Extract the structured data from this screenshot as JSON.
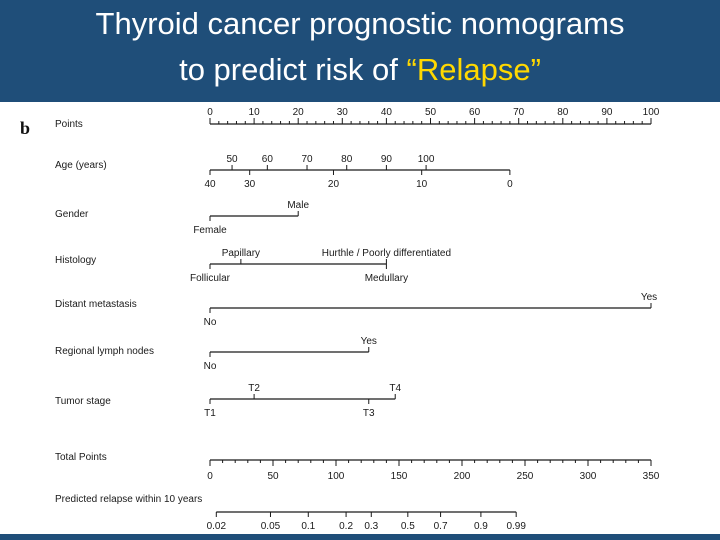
{
  "header": {
    "title_line1": "Thyroid cancer prognostic nomograms",
    "title_line2_prefix": "to predict risk of ",
    "title_line2_highlight": "“Relapse”"
  },
  "colors": {
    "header_bg": "#1f4e79",
    "title_text": "#ffffff",
    "highlight": "#ffd800",
    "ink": "#1a1a1a"
  },
  "chart_data": {
    "type": "nomogram",
    "panel_label": "b",
    "scales": [
      {
        "name": "Points",
        "ticks_above": [
          "0",
          "10",
          "20",
          "30",
          "40",
          "50",
          "60",
          "70",
          "80",
          "90",
          "100"
        ],
        "ticks_below": []
      },
      {
        "name": "Age (years)",
        "ticks_above": [
          "50",
          "60",
          "70",
          "80",
          "90",
          "100"
        ],
        "ticks_below": [
          "40",
          "30",
          "20",
          "10",
          "0"
        ]
      },
      {
        "name": "Gender",
        "ticks_above": [
          "Male"
        ],
        "ticks_below": [
          "Female"
        ]
      },
      {
        "name": "Histology",
        "ticks_above": [
          "Papillary",
          "Hurthle / Poorly differentiated"
        ],
        "ticks_below": [
          "Follicular",
          "Medullary"
        ]
      },
      {
        "name": "Distant metastasis",
        "ticks_above": [
          "Yes"
        ],
        "ticks_below": [
          "No"
        ]
      },
      {
        "name": "Regional lymph nodes",
        "ticks_above": [
          "Yes"
        ],
        "ticks_below": [
          "No"
        ]
      },
      {
        "name": "Tumor stage",
        "ticks_above": [
          "T2",
          "T4"
        ],
        "ticks_below": [
          "T1",
          "T3"
        ]
      },
      {
        "name": "Total Points",
        "ticks_above": [],
        "ticks_below": [
          "0",
          "50",
          "100",
          "150",
          "200",
          "250",
          "300",
          "350"
        ]
      },
      {
        "name": "Predicted relapse within 10 years",
        "ticks_above": [],
        "ticks_below": [
          "0.02",
          "0.05",
          "0.1",
          "0.2",
          "0.3",
          "0.5",
          "0.7",
          "0.9",
          "0.99"
        ]
      }
    ],
    "points_range": [
      0,
      100
    ],
    "total_points_range": [
      0,
      350
    ],
    "scale_points": {
      "Age (years)": {
        "50": 5,
        "60": 13,
        "70": 22,
        "80": 31,
        "90": 40,
        "100": 49,
        "40": 0,
        "30": 9,
        "20": 28,
        "10": 48,
        "0": 68
      },
      "Gender": {
        "Female": 0,
        "Male": 20
      },
      "Histology": {
        "Follicular": 0,
        "Papillary": 7,
        "Hurthle / Poorly differentiated": 40,
        "Medullary": 40
      },
      "Distant metastasis": {
        "No": 0,
        "Yes": 100
      },
      "Regional lymph nodes": {
        "No": 0,
        "Yes": 36
      },
      "Tumor stage": {
        "T1": 0,
        "T2": 10,
        "T3": 36,
        "T4": 42
      }
    },
    "total_points_values": [
      0,
      50,
      100,
      150,
      200,
      250,
      300,
      350
    ],
    "relapse_probability_total_points": {
      "0.02": 5,
      "0.05": 48,
      "0.1": 78,
      "0.2": 108,
      "0.3": 128,
      "0.5": 157,
      "0.7": 183,
      "0.9": 215,
      "0.99": 243
    }
  }
}
